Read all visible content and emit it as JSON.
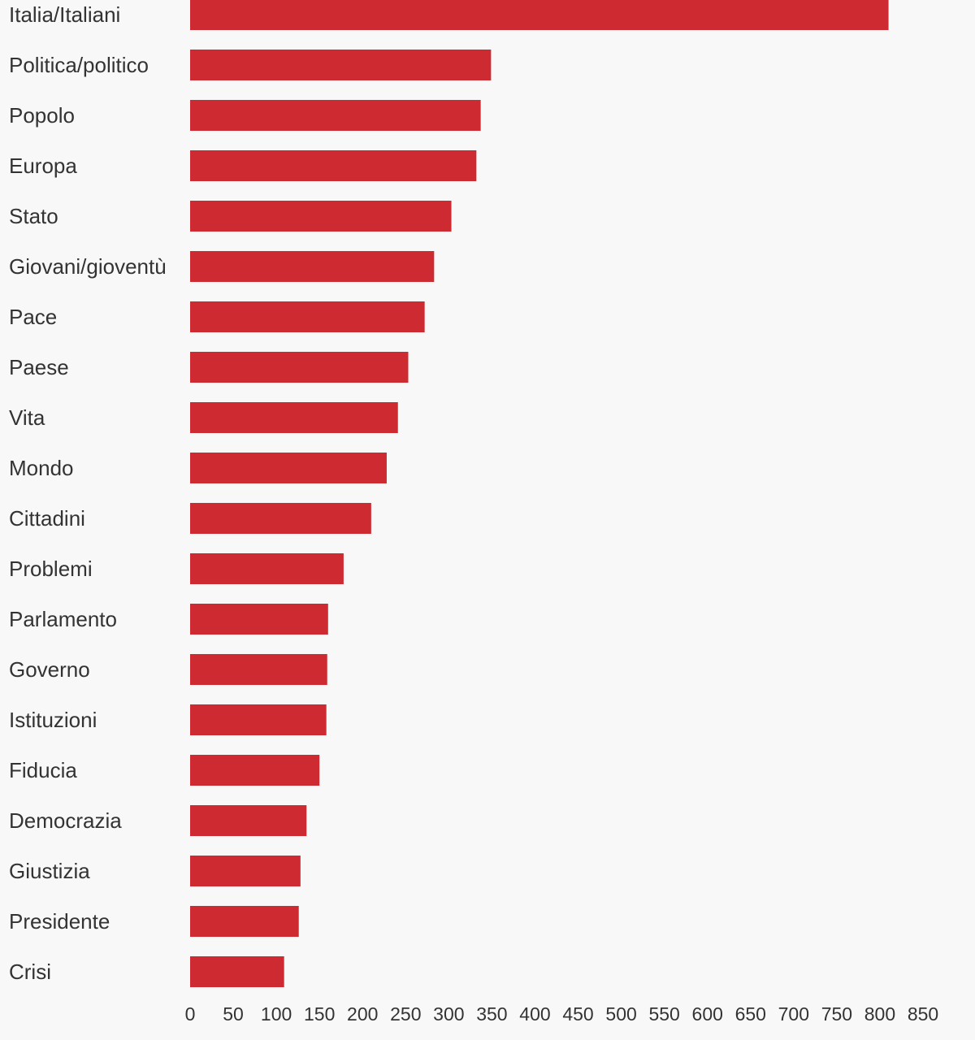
{
  "colors": {
    "bar": "#cd2a31",
    "background": "#f8f8f8",
    "text": "#333333"
  },
  "chart_data": {
    "type": "bar",
    "orientation": "horizontal",
    "title": "",
    "xlabel": "",
    "ylabel": "",
    "grid": false,
    "xlim": [
      0,
      850
    ],
    "xticks": [
      0,
      50,
      100,
      150,
      200,
      250,
      300,
      350,
      400,
      450,
      500,
      550,
      600,
      650,
      700,
      750,
      800,
      850
    ],
    "categories": [
      "Italia/Italiani",
      "Politica/politico",
      "Popolo",
      "Europa",
      "Stato",
      "Giovani/gioventù",
      "Pace",
      "Paese",
      "Vita",
      "Mondo",
      "Cittadini",
      "Problemi",
      "Parlamento",
      "Governo",
      "Istituzioni",
      "Fiducia",
      "Democrazia",
      "Giustizia",
      "Presidente",
      "Crisi"
    ],
    "values": [
      810,
      349,
      337,
      332,
      303,
      283,
      272,
      253,
      241,
      228,
      210,
      178,
      160,
      159,
      158,
      150,
      135,
      128,
      126,
      109
    ]
  }
}
